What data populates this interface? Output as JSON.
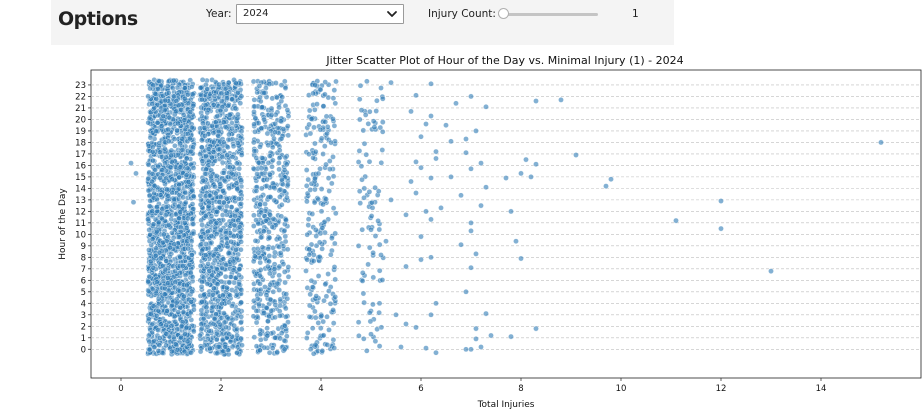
{
  "options": {
    "title": "Options",
    "year_label": "Year:",
    "year_value": "2024",
    "injury_label": "Injury Count:",
    "injury_value": "1",
    "injury_slider_fraction": 0
  },
  "chart_data": {
    "type": "scatter",
    "title": "Jitter Scatter Plot of Hour of the Day vs. Minimal Injury (1) - 2024",
    "xlabel": "Total Injuries",
    "ylabel": "Hour of the Day",
    "xlim": [
      -0.6,
      16
    ],
    "ylim": [
      -2.5,
      24.3
    ],
    "x_ticks": [
      "0",
      "2",
      "4",
      "6",
      "8",
      "10",
      "12",
      "14"
    ],
    "y_ticks": [
      "0",
      "1",
      "2",
      "3",
      "4",
      "5",
      "6",
      "7",
      "8",
      "9",
      "10",
      "11",
      "12",
      "13",
      "14",
      "15",
      "16",
      "17",
      "18",
      "19",
      "20",
      "21",
      "22",
      "23"
    ],
    "grid": "horizontal dashed",
    "point_color": "#2f7cb6",
    "note_clusters": [
      {
        "x": 1,
        "density": "very dense"
      },
      {
        "x": 2,
        "density": "dense"
      },
      {
        "x": 3,
        "density": "medium"
      },
      {
        "x": 4,
        "density": "light"
      },
      {
        "x": 5,
        "density": "sparse"
      },
      {
        "x": 6,
        "density": "sparse"
      }
    ],
    "points": [
      {
        "x": 0.2,
        "y": 16.2
      },
      {
        "x": 0.3,
        "y": 15.3
      },
      {
        "x": 0.25,
        "y": 12.8
      },
      {
        "x": 5.4,
        "y": 23.2
      },
      {
        "x": 5.9,
        "y": 22.1
      },
      {
        "x": 6.2,
        "y": 23.1
      },
      {
        "x": 6.7,
        "y": 21.4
      },
      {
        "x": 7.0,
        "y": 22.0
      },
      {
        "x": 7.3,
        "y": 21.1
      },
      {
        "x": 8.3,
        "y": 21.6
      },
      {
        "x": 8.8,
        "y": 21.7
      },
      {
        "x": 7.1,
        "y": 19.0
      },
      {
        "x": 6.5,
        "y": 19.5
      },
      {
        "x": 6.9,
        "y": 18.3
      },
      {
        "x": 6.3,
        "y": 17.2
      },
      {
        "x": 6.6,
        "y": 18.1
      },
      {
        "x": 7.2,
        "y": 16.2
      },
      {
        "x": 7.0,
        "y": 15.7
      },
      {
        "x": 6.6,
        "y": 15.0
      },
      {
        "x": 6.2,
        "y": 14.9
      },
      {
        "x": 6.0,
        "y": 15.8
      },
      {
        "x": 6.9,
        "y": 17.1
      },
      {
        "x": 7.7,
        "y": 14.9
      },
      {
        "x": 8.0,
        "y": 15.3
      },
      {
        "x": 8.2,
        "y": 15.0
      },
      {
        "x": 8.1,
        "y": 16.5
      },
      {
        "x": 8.3,
        "y": 16.1
      },
      {
        "x": 9.1,
        "y": 16.9
      },
      {
        "x": 9.7,
        "y": 14.2
      },
      {
        "x": 9.8,
        "y": 14.8
      },
      {
        "x": 7.3,
        "y": 14.1
      },
      {
        "x": 6.8,
        "y": 13.4
      },
      {
        "x": 6.4,
        "y": 12.3
      },
      {
        "x": 7.2,
        "y": 12.5
      },
      {
        "x": 7.8,
        "y": 12.0
      },
      {
        "x": 6.2,
        "y": 11.3
      },
      {
        "x": 7.0,
        "y": 11.0
      },
      {
        "x": 7.0,
        "y": 10.3
      },
      {
        "x": 7.9,
        "y": 9.4
      },
      {
        "x": 6.8,
        "y": 9.1
      },
      {
        "x": 7.1,
        "y": 8.3
      },
      {
        "x": 8.0,
        "y": 7.9
      },
      {
        "x": 6.0,
        "y": 7.8
      },
      {
        "x": 5.7,
        "y": 7.2
      },
      {
        "x": 5.2,
        "y": 8.2
      },
      {
        "x": 7.0,
        "y": 7.1
      },
      {
        "x": 12.0,
        "y": 12.9
      },
      {
        "x": 11.1,
        "y": 11.2
      },
      {
        "x": 12.0,
        "y": 10.5
      },
      {
        "x": 13.0,
        "y": 6.8
      },
      {
        "x": 15.2,
        "y": 18.0
      },
      {
        "x": 6.9,
        "y": 5.0
      },
      {
        "x": 6.3,
        "y": 4.0
      },
      {
        "x": 6.2,
        "y": 3.0
      },
      {
        "x": 7.3,
        "y": 3.1
      },
      {
        "x": 7.1,
        "y": 1.8
      },
      {
        "x": 7.1,
        "y": 0.9
      },
      {
        "x": 7.4,
        "y": 1.2
      },
      {
        "x": 7.0,
        "y": 0.0
      },
      {
        "x": 6.9,
        "y": 0.0
      },
      {
        "x": 6.3,
        "y": -0.3
      },
      {
        "x": 6.1,
        "y": 0.1
      },
      {
        "x": 5.9,
        "y": 1.9
      },
      {
        "x": 5.7,
        "y": 2.2
      },
      {
        "x": 5.5,
        "y": 3.0
      },
      {
        "x": 5.6,
        "y": 0.2
      },
      {
        "x": 7.8,
        "y": 1.1
      },
      {
        "x": 8.3,
        "y": 1.8
      },
      {
        "x": 7.2,
        "y": 0.2
      },
      {
        "x": 5.8,
        "y": 14.6
      },
      {
        "x": 5.9,
        "y": 13.6
      },
      {
        "x": 6.1,
        "y": 12.0
      },
      {
        "x": 5.9,
        "y": 16.3
      },
      {
        "x": 6.0,
        "y": 18.5
      },
      {
        "x": 6.1,
        "y": 19.6
      },
      {
        "x": 6.2,
        "y": 20.3
      },
      {
        "x": 5.8,
        "y": 20.7
      },
      {
        "x": 6.3,
        "y": 16.6
      },
      {
        "x": 6.0,
        "y": 9.8
      },
      {
        "x": 6.2,
        "y": 8.0
      },
      {
        "x": 5.3,
        "y": 9.4
      },
      {
        "x": 5.0,
        "y": 10.4
      },
      {
        "x": 5.4,
        "y": 13.0
      },
      {
        "x": 5.7,
        "y": 11.7
      }
    ]
  }
}
